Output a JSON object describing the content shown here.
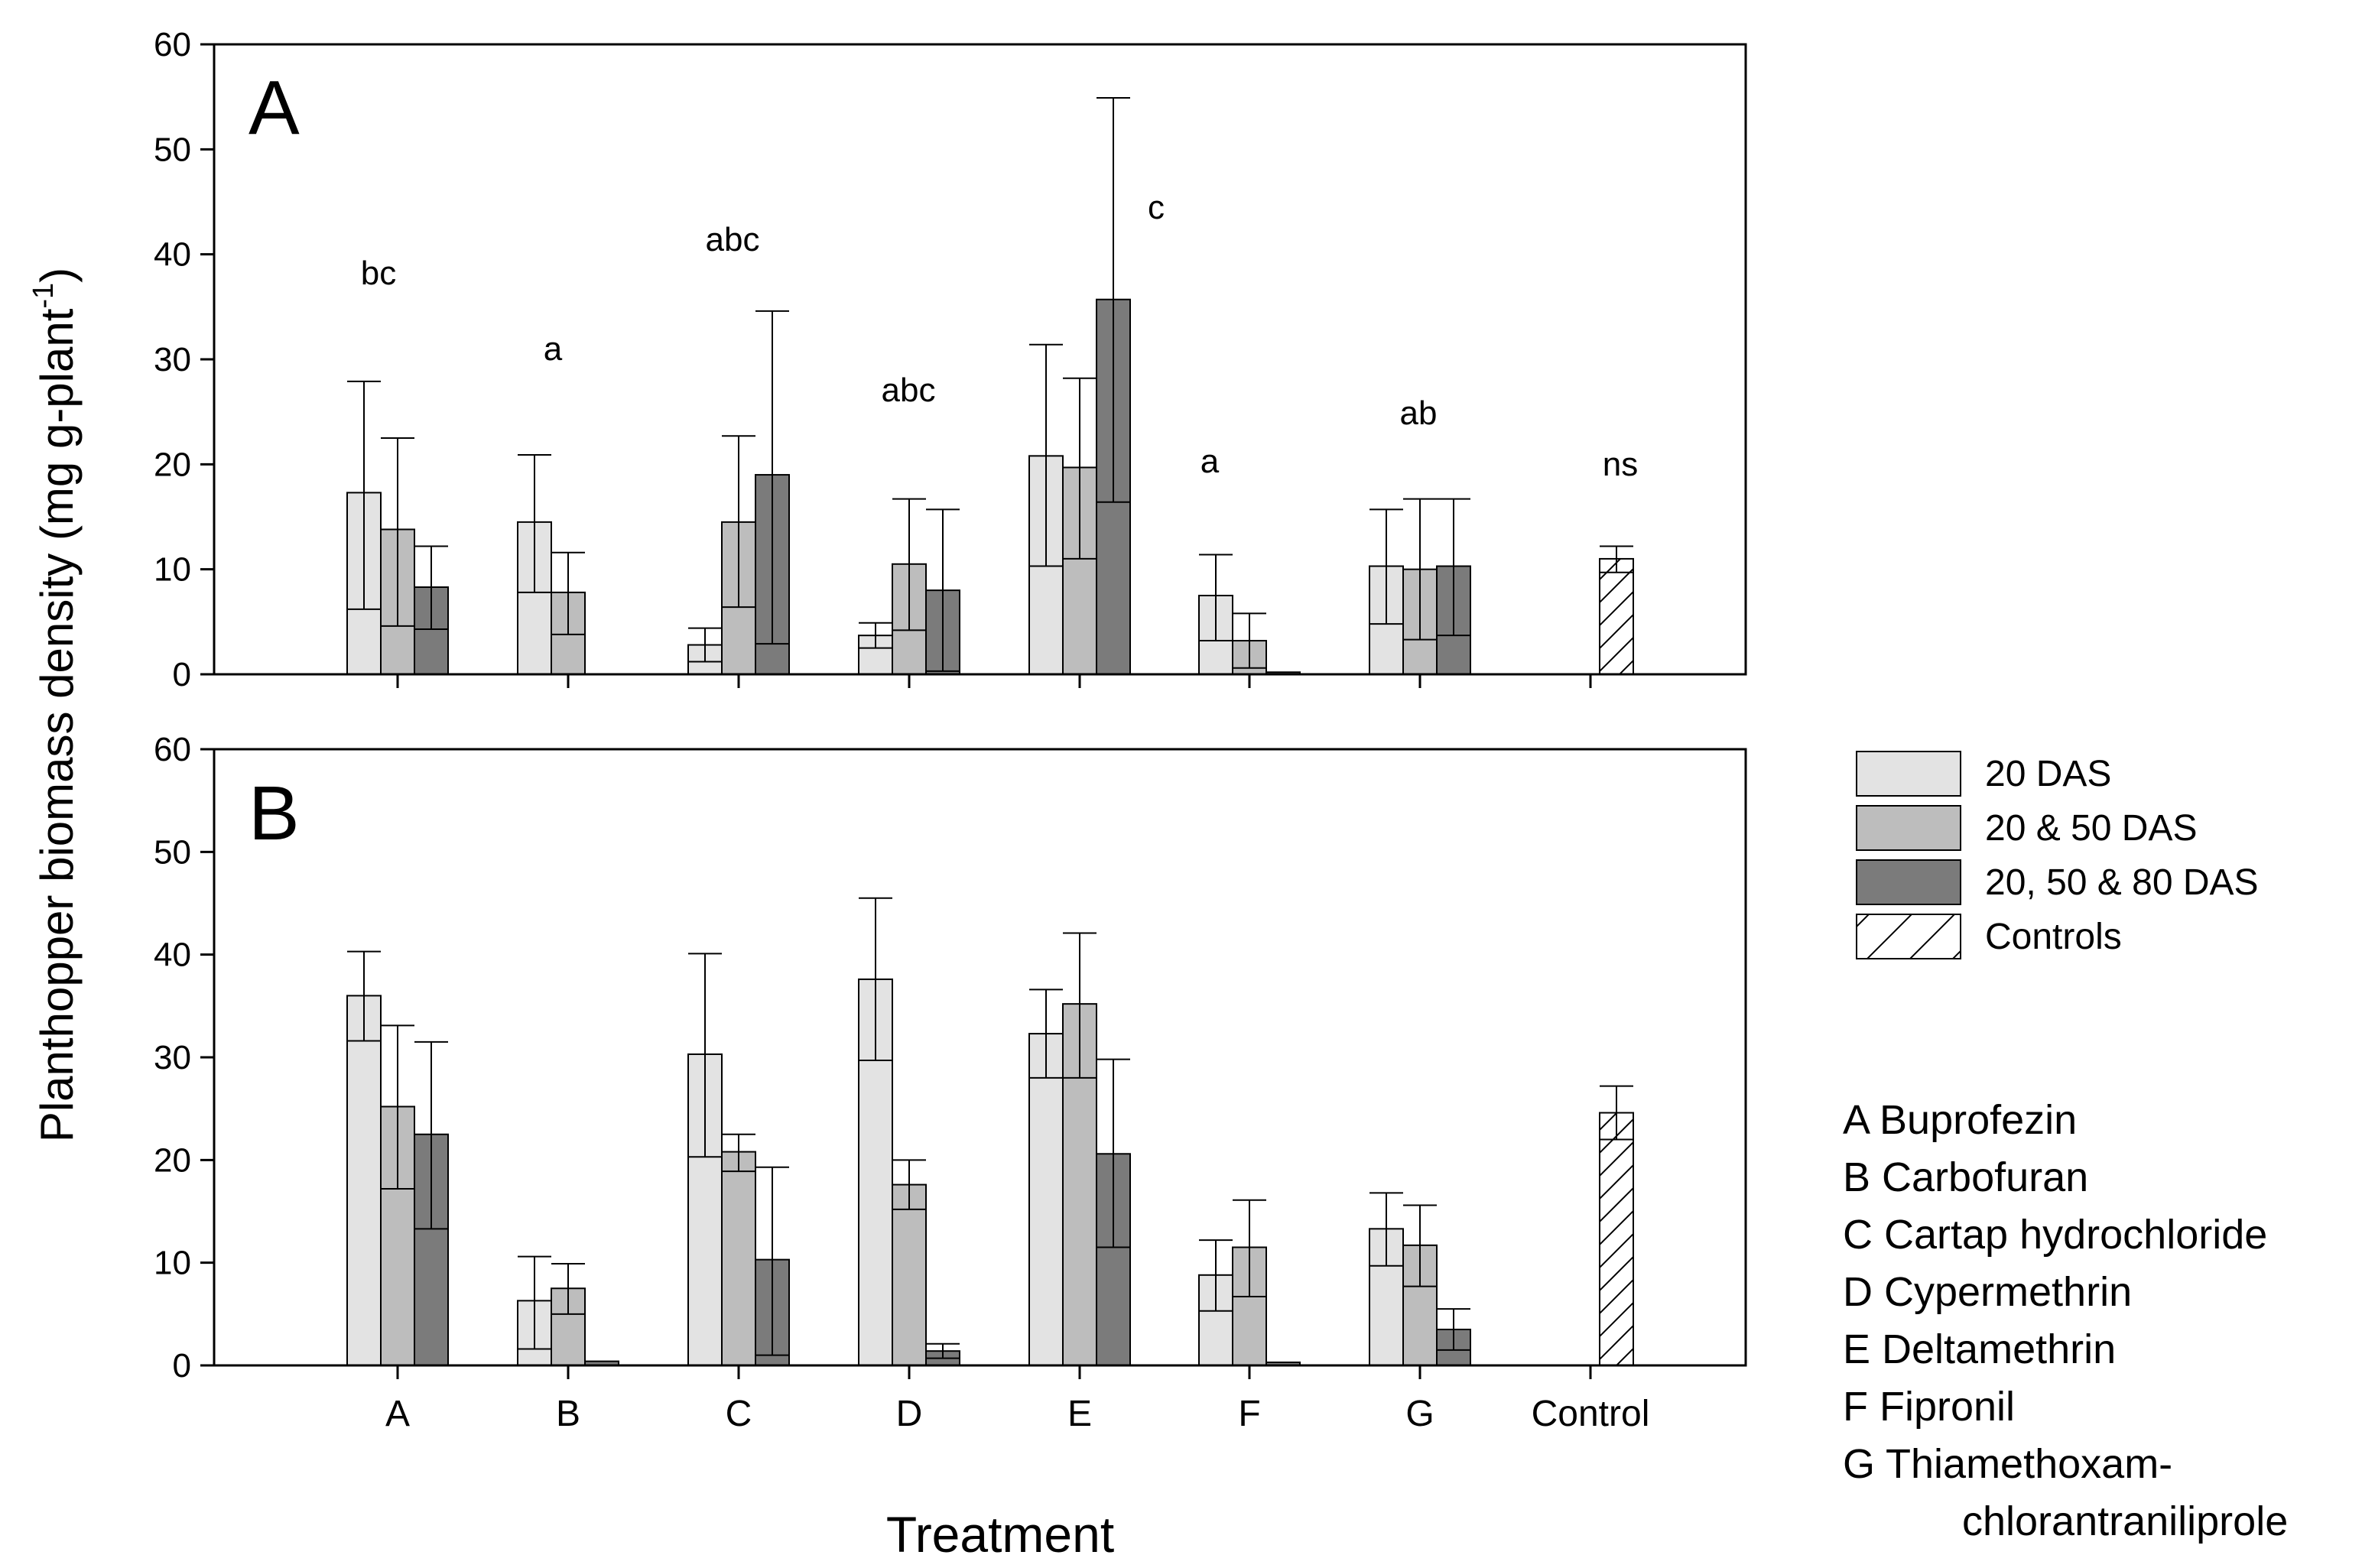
{
  "chart_data": {
    "type": "bar",
    "xlabel": "Treatment",
    "ylabel": "Planthopper biomass density (mg g-plant",
    "ylabel_superscript": "-1",
    "ylabel_close": ")",
    "ylim": [
      0,
      60
    ],
    "yticks": [
      0,
      10,
      20,
      30,
      40,
      50,
      60
    ],
    "categories": [
      "A",
      "B",
      "C",
      "D",
      "E",
      "F",
      "G",
      "Control"
    ],
    "legend": {
      "position": "right",
      "entries": [
        {
          "name": "20 DAS",
          "fill": "#e3e3e3",
          "pattern": "solid"
        },
        {
          "name": "20 & 50 DAS",
          "fill": "#bdbdbd",
          "pattern": "solid"
        },
        {
          "name": "20, 50 & 80 DAS",
          "fill": "#7b7b7b",
          "pattern": "solid"
        },
        {
          "name": "Controls",
          "fill": "#ffffff",
          "pattern": "hatch"
        }
      ]
    },
    "treatment_key": [
      "A Buprofezin",
      "B Carbofuran",
      "C Cartap hydrochloride",
      "D Cypermethrin",
      "E Deltamethrin",
      "F Fipronil",
      "G Thiamethoxam-",
      "chlorantraniliprole"
    ],
    "panels": [
      {
        "label": "A",
        "series": [
          {
            "name": "20 DAS",
            "values": [
              17.3,
              14.5,
              2.8,
              3.7,
              20.8,
              7.5,
              10.3,
              null
            ],
            "lower": [
              6.2,
              7.8,
              1.2,
              2.5,
              10.3,
              3.2,
              4.8,
              null
            ],
            "upper": [
              27.9,
              20.9,
              4.4,
              4.9,
              31.4,
              11.4,
              15.7,
              null
            ]
          },
          {
            "name": "20 & 50 DAS",
            "values": [
              13.8,
              7.8,
              14.5,
              10.5,
              19.7,
              3.2,
              10.0,
              null
            ],
            "lower": [
              4.6,
              3.8,
              6.4,
              4.2,
              11.0,
              0.6,
              3.3,
              null
            ],
            "upper": [
              22.5,
              11.6,
              22.7,
              16.7,
              28.2,
              5.8,
              16.7,
              null
            ]
          },
          {
            "name": "20, 50 & 80 DAS",
            "values": [
              8.3,
              null,
              19.0,
              8.0,
              35.7,
              0.2,
              10.3,
              null
            ],
            "lower": [
              4.3,
              null,
              2.9,
              0.3,
              16.4,
              null,
              3.7,
              null
            ],
            "upper": [
              12.2,
              null,
              34.6,
              15.7,
              54.9,
              null,
              16.7,
              null
            ]
          },
          {
            "name": "Controls",
            "values": [
              null,
              null,
              null,
              null,
              null,
              null,
              null,
              11.0
            ],
            "lower": [
              null,
              null,
              null,
              null,
              null,
              null,
              null,
              9.7
            ],
            "upper": [
              null,
              null,
              null,
              null,
              null,
              null,
              null,
              12.2
            ]
          }
        ],
        "significance": [
          "bc",
          "a",
          "abc",
          "abc",
          "c",
          "a",
          "ab",
          "ns"
        ]
      },
      {
        "label": "B",
        "series": [
          {
            "name": "20 DAS",
            "values": [
              36.0,
              6.3,
              30.3,
              37.6,
              32.3,
              8.8,
              13.3,
              null
            ],
            "lower": [
              31.6,
              1.6,
              20.3,
              29.7,
              28.0,
              5.3,
              9.7,
              null
            ],
            "upper": [
              40.3,
              10.6,
              40.1,
              45.5,
              36.6,
              12.2,
              16.8,
              null
            ]
          },
          {
            "name": "20 & 50 DAS",
            "values": [
              25.2,
              7.5,
              20.8,
              17.6,
              35.2,
              11.5,
              11.7,
              null
            ],
            "lower": [
              17.2,
              5.0,
              18.9,
              15.2,
              28.0,
              6.7,
              7.7,
              null
            ],
            "upper": [
              33.1,
              9.9,
              22.5,
              20.0,
              42.1,
              16.1,
              15.6,
              null
            ]
          },
          {
            "name": "20, 50 & 80 DAS",
            "values": [
              22.5,
              0.4,
              10.3,
              1.4,
              20.6,
              0.3,
              3.5,
              null
            ],
            "lower": [
              13.3,
              null,
              1.0,
              0.7,
              11.5,
              null,
              1.5,
              null
            ],
            "upper": [
              31.5,
              null,
              19.3,
              2.1,
              29.8,
              null,
              5.5,
              null
            ]
          },
          {
            "name": "Controls",
            "values": [
              null,
              null,
              null,
              null,
              null,
              null,
              null,
              24.6
            ],
            "lower": [
              null,
              null,
              null,
              null,
              null,
              null,
              null,
              22.0
            ],
            "upper": [
              null,
              null,
              null,
              null,
              null,
              null,
              null,
              27.2
            ]
          }
        ],
        "significance": []
      }
    ]
  }
}
